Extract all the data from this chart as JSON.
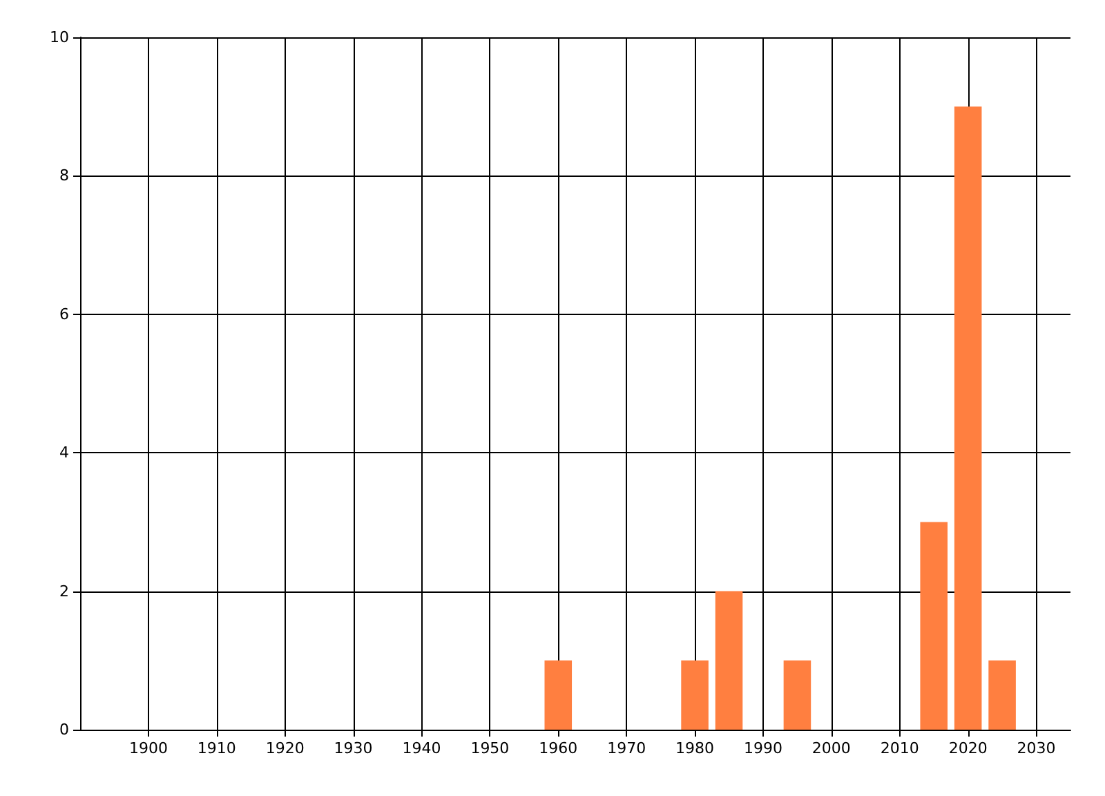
{
  "chart_data": {
    "type": "bar",
    "x": [
      1960,
      1980,
      1985,
      1995,
      2015,
      2020,
      2025
    ],
    "values": [
      1,
      1,
      2,
      1,
      3,
      9,
      1
    ],
    "color": "#ff7f40",
    "xlim": [
      1890,
      2035
    ],
    "xticks": [
      1900,
      1910,
      1920,
      1930,
      1940,
      1950,
      1960,
      1970,
      1980,
      1990,
      2000,
      2010,
      2020,
      2030
    ],
    "ylim": [
      0,
      10
    ],
    "yticks": [
      0,
      2,
      4,
      6,
      8,
      10
    ],
    "grid": true
  }
}
